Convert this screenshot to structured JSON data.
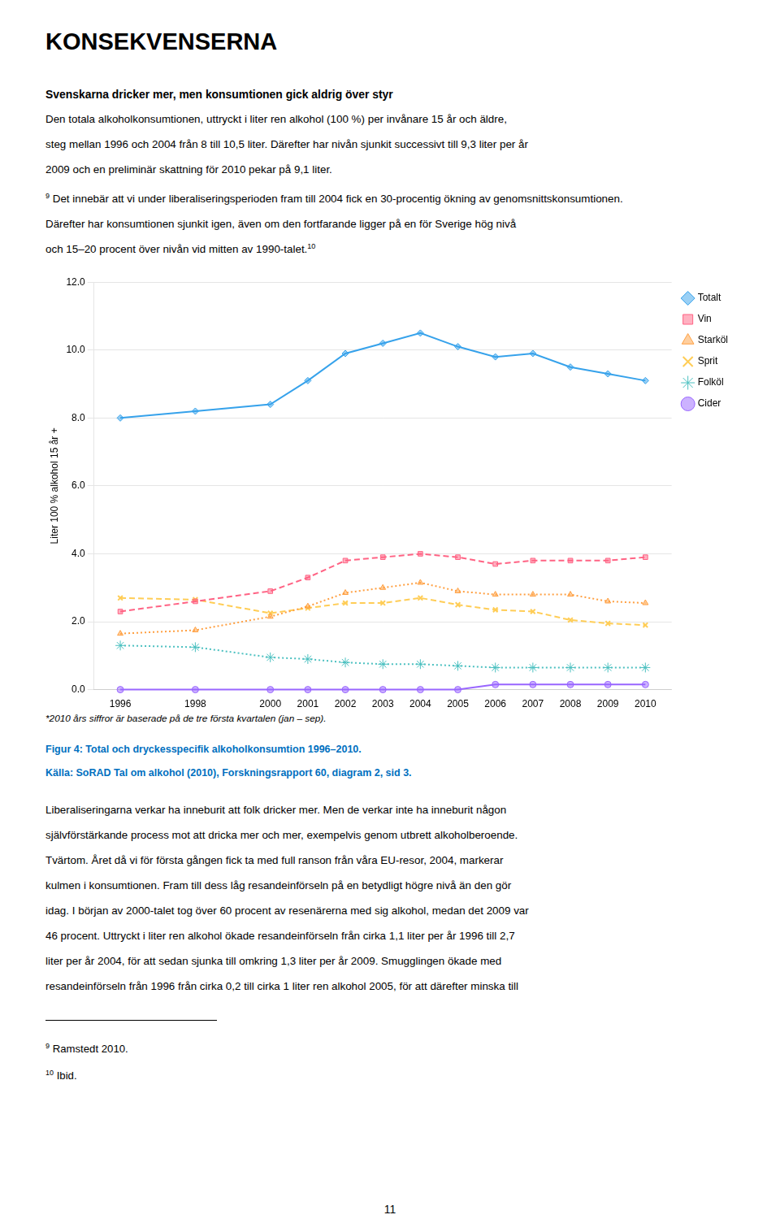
{
  "background_color": "#ffffff",
  "text_color": "#000000",
  "caption_color": "#0070c0",
  "page_title": "KONSEKVENSERNA",
  "subtitle": "Svenskarna dricker mer, men konsumtionen gick aldrig över styr",
  "body_text1_lines": [
    "Den totala alkoholkonsumtionen, uttryckt i liter ren alkohol (100 %) per invånare 15 år och äldre,",
    "steg mellan 1996 och 2004 från 8 till 10,5 liter. Därefter har nivån sjunkit successivt till 9,3 liter per år",
    "2009 och en preliminär skattning för 2010 pekar på 9,1 liter."
  ],
  "body_text2": "Det innebär att vi under liberaliseringsperioden fram till 2004 fick en 30-procentig ökning av genomsnittskonsumtionen.",
  "body_text3_lines": [
    "Därefter har konsumtionen sjunkit igen, även om den fortfarande ligger på en för Sverige hög nivå",
    "och 15–20 procent över nivån vid mitten av 1990-talet."
  ],
  "chart_data": {
    "type": "line",
    "x": [
      1996,
      1998,
      2000,
      2001,
      2002,
      2003,
      2004,
      2005,
      2006,
      2007,
      2008,
      2009,
      2010
    ],
    "series": [
      {
        "name": "Totalt",
        "values": [
          8.0,
          8.2,
          8.4,
          9.1,
          9.9,
          10.2,
          10.5,
          10.1,
          9.8,
          9.9,
          9.5,
          9.3,
          9.1
        ],
        "marker": "diamond",
        "line_style": "solid"
      },
      {
        "name": "Vin",
        "values": [
          2.3,
          2.6,
          2.9,
          3.3,
          3.8,
          3.9,
          4.0,
          3.9,
          3.7,
          3.8,
          3.8,
          3.8,
          3.9
        ],
        "marker": "square",
        "line_style": "dashed"
      },
      {
        "name": "Starköl",
        "values": [
          1.65,
          1.75,
          2.15,
          2.45,
          2.85,
          3.0,
          3.15,
          2.9,
          2.8,
          2.8,
          2.8,
          2.6,
          2.55
        ],
        "marker": "triangle",
        "line_style": "dotted"
      },
      {
        "name": "Sprit",
        "values": [
          2.7,
          2.65,
          2.25,
          2.4,
          2.55,
          2.55,
          2.7,
          2.5,
          2.35,
          2.3,
          2.05,
          1.95,
          1.9
        ],
        "marker": "x",
        "line_style": "dashed"
      },
      {
        "name": "Folköl",
        "values": [
          1.3,
          1.25,
          0.95,
          0.9,
          0.8,
          0.75,
          0.75,
          0.7,
          0.65,
          0.65,
          0.65,
          0.65,
          0.65
        ],
        "marker": "star",
        "line_style": "dotted"
      },
      {
        "name": "Cider",
        "values": [
          0.0,
          0.0,
          0.0,
          0.0,
          0.0,
          0.0,
          0.0,
          0.0,
          0.15,
          0.15,
          0.15,
          0.15,
          0.15
        ],
        "marker": "circle",
        "line_style": "solid"
      }
    ],
    "xlim": [
      1995.3,
      2010.7
    ],
    "xticks": [
      1996,
      1998,
      2000,
      2001,
      2002,
      2003,
      2004,
      2005,
      2006,
      2007,
      2008,
      2009,
      2010
    ],
    "ylabel": "Liter 100 % alkohol 15 år +",
    "ylim": [
      0.0,
      12.0
    ],
    "yticks": [
      {
        "value": 0.0,
        "label": "0.0"
      },
      {
        "value": 2.0,
        "label": "2.0"
      },
      {
        "value": 4.0,
        "label": "4.0"
      },
      {
        "value": 6.0,
        "label": "6.0"
      },
      {
        "value": 8.0,
        "label": "8.0"
      },
      {
        "value": 10.0,
        "label": "10.0"
      },
      {
        "value": 12.0,
        "label": "12.0"
      }
    ],
    "grid": "y",
    "legend": "right"
  },
  "chart_footnote": "*2010 års siffror är baserade på de tre första kvartalen (jan – sep).",
  "caption_lines": [
    "Figur 4: Total och dryckesspecifik alkoholkonsumtion 1996–2010.",
    "Källa: SoRAD Tal om alkohol (2010), Forskningsrapport 60, diagram 2, sid 3."
  ],
  "bottom_text_lines": [
    "Liberaliseringarna verkar ha inneburit att folk dricker mer. Men de verkar inte ha inneburit någon",
    "självförstärkande process mot att dricka mer och mer, exempelvis genom utbrett alkoholberoende.",
    "Tvärtom. Året då vi för första gången fick ta med full ranson från våra EU-resor, 2004, markerar",
    "kulmen i konsumtionen. Fram till dess låg resandeinförseln på en betydligt högre nivå än den gör",
    "idag. I början av 2000-talet tog över 60 procent av resenärerna med sig alkohol, medan det 2009 var",
    "46 procent. Uttryckt i liter ren alkohol ökade resandeinförseln från cirka 1,1 liter per år 1996 till 2,7",
    "liter per år 2004, för att sedan sjunka till omkring 1,3 liter per år 2009. Smugglingen ökade med",
    "resandeinförseln från 1996 från cirka 0,2 till cirka 1 liter ren alkohol 2005, för att därefter minska till"
  ],
  "footnotes": [
    {
      "num": "9",
      "text": "Ramstedt 2010."
    },
    {
      "num": "10",
      "text": "Ibid."
    }
  ],
  "page_number": "11"
}
